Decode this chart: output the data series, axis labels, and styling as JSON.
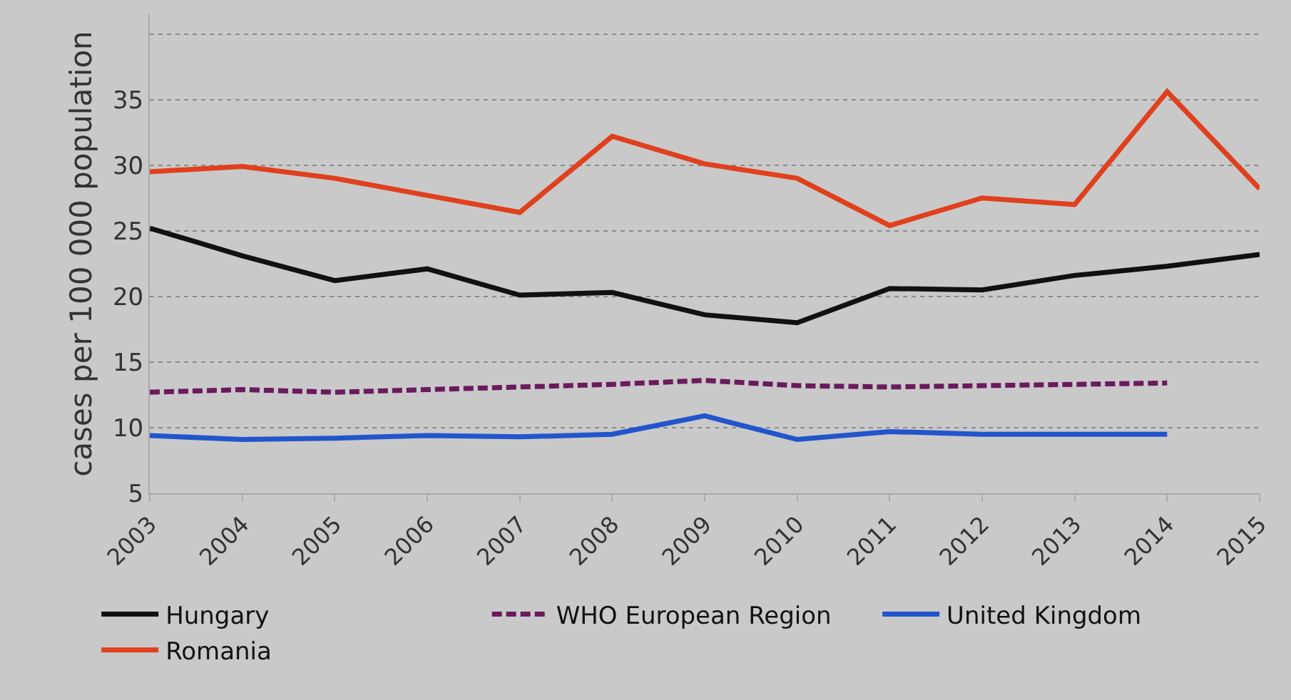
{
  "chart_data": {
    "type": "line",
    "ylabel": "cases per 100 000 population",
    "x": [
      2003,
      2004,
      2005,
      2006,
      2007,
      2008,
      2009,
      2010,
      2011,
      2012,
      2013,
      2014,
      2015
    ],
    "series": [
      {
        "name": "Hungary",
        "color": "#111111",
        "values": [
          25.2,
          23.1,
          21.2,
          22.1,
          20.1,
          20.3,
          18.6,
          18.0,
          20.6,
          20.5,
          21.6,
          22.3,
          23.2
        ]
      },
      {
        "name": "WHO European Region",
        "color": "#6b1a5e",
        "line_style": "dashed",
        "values": [
          12.7,
          12.9,
          12.7,
          12.9,
          13.1,
          13.3,
          13.6,
          13.2,
          13.1,
          13.2,
          13.3,
          13.4,
          null
        ]
      },
      {
        "name": "United Kingdom",
        "color": "#2255cc",
        "values": [
          9.4,
          9.1,
          9.2,
          9.4,
          9.3,
          9.5,
          10.9,
          9.1,
          9.7,
          9.5,
          9.5,
          9.5,
          null
        ]
      },
      {
        "name": "Romania",
        "color": "#e0401e",
        "values": [
          29.5,
          29.9,
          29.0,
          27.7,
          26.4,
          32.2,
          30.1,
          29.0,
          25.4,
          27.5,
          27.0,
          35.6,
          28.2
        ]
      }
    ],
    "xlim": [
      2003,
      2015
    ],
    "xticks": [
      2003,
      2004,
      2005,
      2006,
      2007,
      2008,
      2009,
      2010,
      2011,
      2012,
      2013,
      2014,
      2015
    ],
    "ylim": [
      5,
      41.5
    ],
    "yticks": [
      5,
      10,
      15,
      20,
      25,
      30,
      35,
      {
        "value": 40,
        "label": null
      }
    ],
    "grid": "y",
    "legend": "bottom",
    "marker": "none",
    "line_style": "solid"
  }
}
